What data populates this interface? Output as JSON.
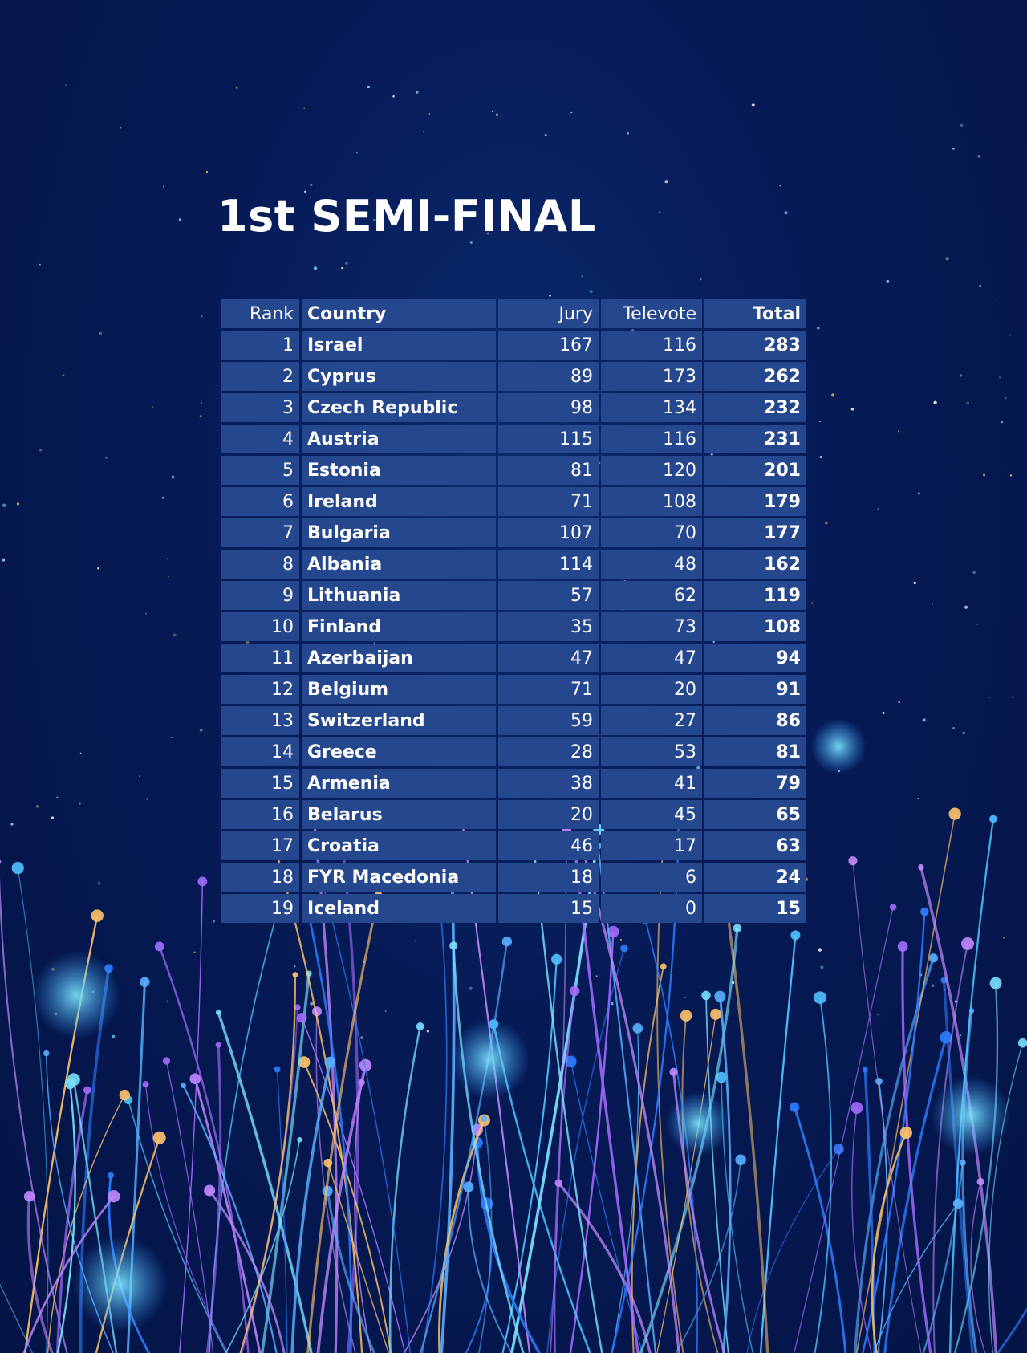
{
  "title": "1st SEMI-FINAL",
  "table": {
    "header": [
      "Rank",
      "Country",
      "Jury",
      "Televote",
      "Total"
    ],
    "rows": [
      [
        1,
        "Israel",
        167,
        116,
        283
      ],
      [
        2,
        "Cyprus",
        89,
        173,
        262
      ],
      [
        3,
        "Czech Republic",
        98,
        134,
        232
      ],
      [
        4,
        "Austria",
        115,
        116,
        231
      ],
      [
        5,
        "Estonia",
        81,
        120,
        201
      ],
      [
        6,
        "Ireland",
        71,
        108,
        179
      ],
      [
        7,
        "Bulgaria",
        107,
        70,
        177
      ],
      [
        8,
        "Albania",
        114,
        48,
        162
      ],
      [
        9,
        "Lithuania",
        57,
        62,
        119
      ],
      [
        10,
        "Finland",
        35,
        73,
        108
      ],
      [
        11,
        "Azerbaijan",
        47,
        47,
        94
      ],
      [
        12,
        "Belgium",
        71,
        20,
        91
      ],
      [
        13,
        "Switzerland",
        59,
        27,
        86
      ],
      [
        14,
        "Greece",
        28,
        53,
        81
      ],
      [
        15,
        "Armenia",
        38,
        41,
        79
      ],
      [
        16,
        "Belarus",
        20,
        45,
        65
      ],
      [
        17,
        "Croatia",
        46,
        17,
        63
      ],
      [
        18,
        "FYR Macedonia",
        18,
        6,
        24
      ],
      [
        19,
        "Iceland",
        15,
        0,
        15
      ]
    ]
  }
}
